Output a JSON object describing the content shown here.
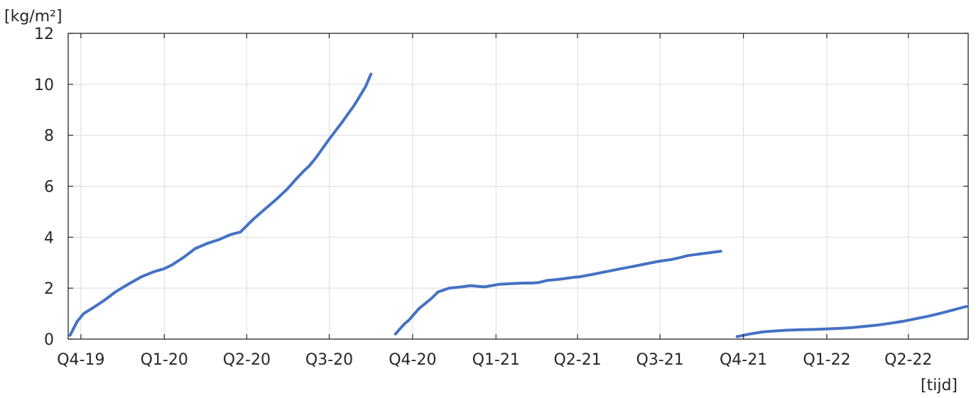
{
  "chart_data": {
    "type": "line",
    "title": "",
    "xlabel": "[tijd]",
    "ylabel": "[kg/m²]",
    "grid": true,
    "legend": "none",
    "line_color": "#4472C4",
    "xlim": [
      "2019-09-17",
      "2022-06-06"
    ],
    "ylim": [
      0,
      12
    ],
    "yticks": [
      0,
      2,
      4,
      6,
      8,
      10,
      12
    ],
    "xticks": [
      {
        "date": "2019-10-01",
        "label": "Q4-19"
      },
      {
        "date": "2020-01-01",
        "label": "Q1-20"
      },
      {
        "date": "2020-04-01",
        "label": "Q2-20"
      },
      {
        "date": "2020-07-01",
        "label": "Q3-20"
      },
      {
        "date": "2020-10-01",
        "label": "Q4-20"
      },
      {
        "date": "2021-01-01",
        "label": "Q1-21"
      },
      {
        "date": "2021-04-01",
        "label": "Q2-21"
      },
      {
        "date": "2021-07-01",
        "label": "Q3-21"
      },
      {
        "date": "2021-10-01",
        "label": "Q4-21"
      },
      {
        "date": "2022-01-01",
        "label": "Q1-22"
      },
      {
        "date": "2022-04-01",
        "label": "Q2-22"
      }
    ],
    "series": [
      {
        "x": [
          "2019-09-19",
          "2019-09-27",
          "2019-10-04",
          "2019-10-13",
          "2019-10-26",
          "2019-11-08",
          "2019-11-22",
          "2019-12-07",
          "2019-12-21",
          "2019-12-31",
          "2020-01-09",
          "2020-01-22",
          "2020-02-04",
          "2020-02-17",
          "2020-03-01",
          "2020-03-14",
          "2020-03-25",
          "2020-04-01",
          "2020-04-08",
          "2020-04-21",
          "2020-05-04",
          "2020-05-16",
          "2020-05-26",
          "2020-06-03",
          "2020-06-09",
          "2020-06-16",
          "2020-06-24",
          "2020-07-01",
          "2020-07-15",
          "2020-07-29",
          "2020-08-10",
          "2020-08-16"
        ],
        "y": [
          0.15,
          0.7,
          1.0,
          1.2,
          1.5,
          1.85,
          2.15,
          2.45,
          2.65,
          2.75,
          2.9,
          3.2,
          3.55,
          3.75,
          3.9,
          4.1,
          4.2,
          4.45,
          4.7,
          5.1,
          5.5,
          5.9,
          6.3,
          6.6,
          6.8,
          7.1,
          7.5,
          7.85,
          8.5,
          9.2,
          9.9,
          10.4
        ]
      },
      {
        "x": [
          "2020-09-12",
          "2020-09-22",
          "2020-09-27",
          "2020-10-08",
          "2020-10-22",
          "2020-10-29",
          "2020-11-10",
          "2020-11-24",
          "2020-12-04",
          "2020-12-19",
          "2020-12-27",
          "2021-01-04",
          "2021-01-18",
          "2021-02-01",
          "2021-02-10",
          "2021-02-17",
          "2021-02-26",
          "2021-03-12",
          "2021-03-29",
          "2021-04-04",
          "2021-04-19",
          "2021-05-03",
          "2021-05-17",
          "2021-06-01",
          "2021-06-15",
          "2021-06-29",
          "2021-07-13",
          "2021-07-23",
          "2021-08-01",
          "2021-08-22",
          "2021-09-06"
        ],
        "y": [
          0.2,
          0.6,
          0.75,
          1.2,
          1.6,
          1.85,
          2.0,
          2.05,
          2.1,
          2.05,
          2.1,
          2.15,
          2.18,
          2.2,
          2.2,
          2.22,
          2.3,
          2.35,
          2.43,
          2.45,
          2.55,
          2.65,
          2.75,
          2.85,
          2.95,
          3.05,
          3.12,
          3.2,
          3.28,
          3.38,
          3.45
        ]
      },
      {
        "x": [
          "2021-09-24",
          "2021-10-08",
          "2021-10-22",
          "2021-11-05",
          "2021-11-19",
          "2021-12-03",
          "2021-12-17",
          "2022-01-01",
          "2022-01-15",
          "2022-01-29",
          "2022-02-12",
          "2022-02-26",
          "2022-03-12",
          "2022-03-26",
          "2022-04-09",
          "2022-04-23",
          "2022-05-07",
          "2022-05-21",
          "2022-06-04"
        ],
        "y": [
          0.1,
          0.2,
          0.28,
          0.32,
          0.35,
          0.37,
          0.38,
          0.4,
          0.42,
          0.45,
          0.5,
          0.55,
          0.62,
          0.7,
          0.8,
          0.9,
          1.02,
          1.15,
          1.28
        ]
      }
    ]
  }
}
